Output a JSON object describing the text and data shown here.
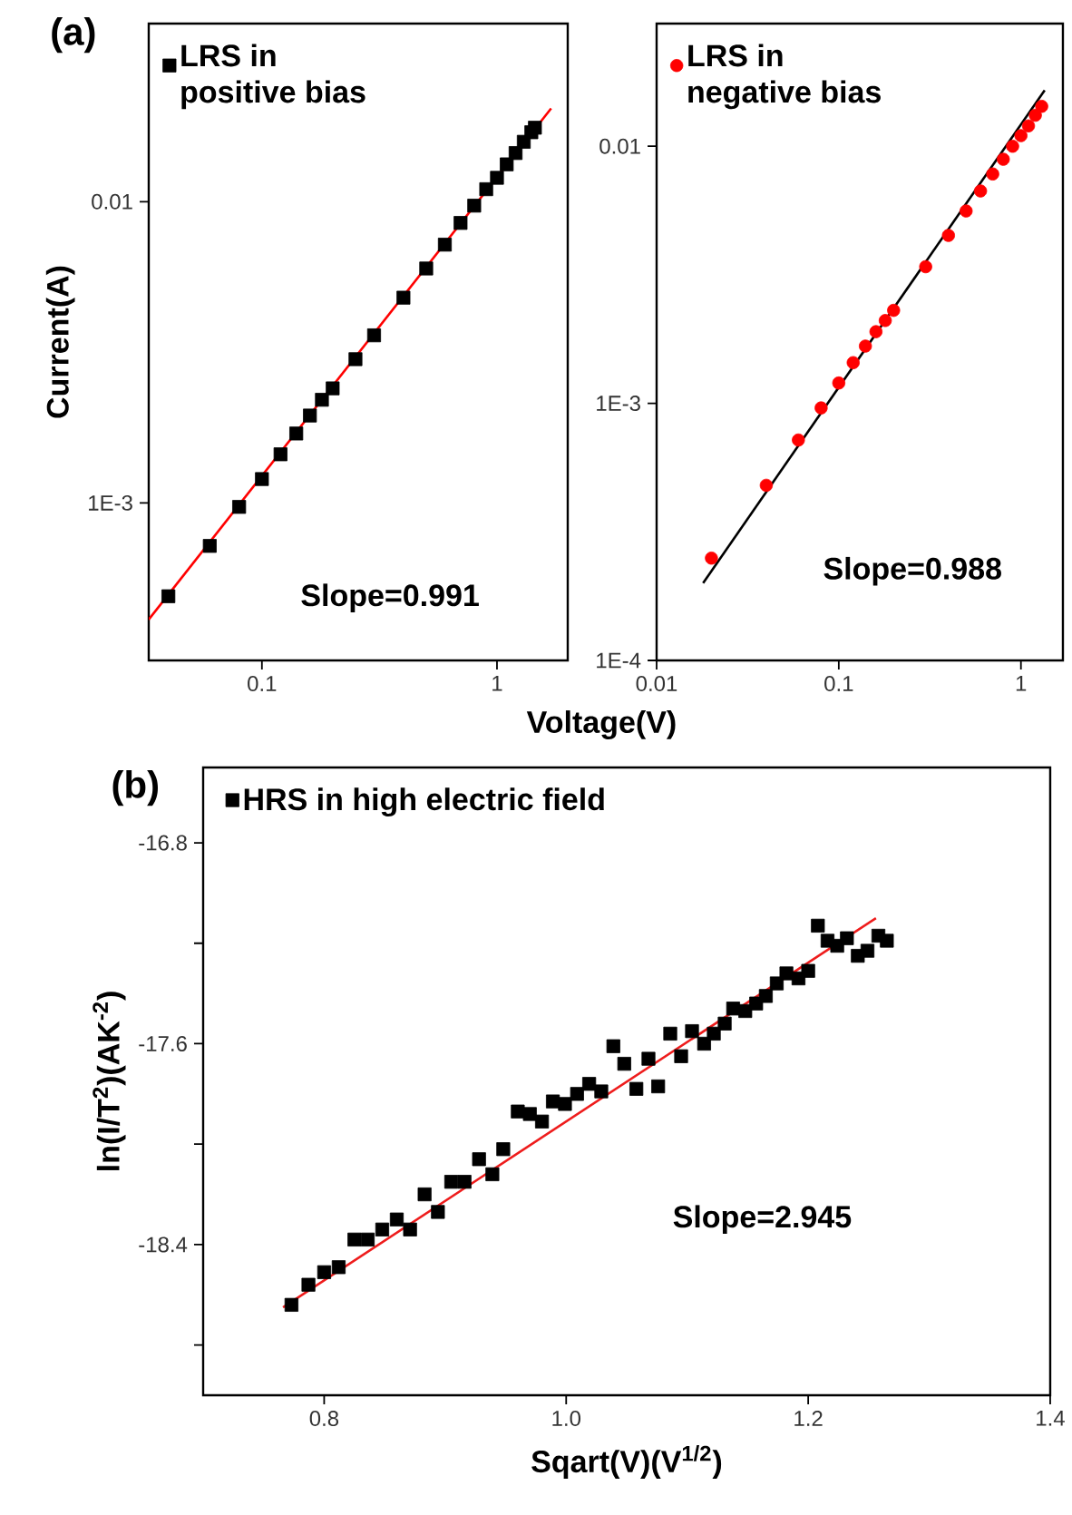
{
  "chart_data": [
    {
      "type": "scatter",
      "title": "(a)",
      "xlabel": "Voltage(V)",
      "ylabel": "Current(A)",
      "log": "xy",
      "legend": "top left",
      "xlim": [
        0.033,
        2.0
      ],
      "ylim": [
        0.0003,
        0.039
      ],
      "xticks": [
        0.1,
        1
      ],
      "yticks": [
        0.01,
        {
          "value": 0.001,
          "label": "1E-3"
        }
      ],
      "annotations": [
        "Slope=0.991"
      ],
      "series": [
        {
          "name": "LRS in positive bias",
          "marker": "square",
          "color": "#000000",
          "x": [
            0.04,
            0.06,
            0.08,
            0.1,
            0.12,
            0.14,
            0.16,
            0.18,
            0.2,
            0.25,
            0.3,
            0.4,
            0.5,
            0.6,
            0.7,
            0.8,
            0.9,
            1.0,
            1.1,
            1.2,
            1.3,
            1.4,
            1.45
          ],
          "values": [
            0.00049,
            0.00072,
            0.00097,
            0.0012,
            0.00145,
            0.0017,
            0.00195,
            0.0022,
            0.0024,
            0.003,
            0.0036,
            0.0048,
            0.006,
            0.0072,
            0.0085,
            0.0097,
            0.011,
            0.012,
            0.0133,
            0.0145,
            0.0158,
            0.017,
            0.0176
          ]
        },
        {
          "type": "line",
          "color": "#ff0000",
          "x": [
            0.033,
            1.7
          ],
          "values": [
            0.00041,
            0.0204
          ]
        }
      ]
    },
    {
      "type": "scatter",
      "log": "xy",
      "legend": "top left",
      "xlim": [
        0.01,
        1.7
      ],
      "ylim": [
        0.0001,
        0.03
      ],
      "xticks": [
        0.01,
        0.1,
        1
      ],
      "yticks": [
        0.01,
        {
          "value": 0.001,
          "label": "1E-3"
        },
        {
          "value": 0.0001,
          "label": "1E-4"
        }
      ],
      "annotations": [
        "Slope=0.988"
      ],
      "series": [
        {
          "name": "LRS in negative bias",
          "marker": "circle",
          "color": "#ff0000",
          "x": [
            0.02,
            0.04,
            0.06,
            0.08,
            0.1,
            0.12,
            0.14,
            0.16,
            0.18,
            0.2,
            0.3,
            0.4,
            0.5,
            0.6,
            0.7,
            0.8,
            0.9,
            1.0,
            1.1,
            1.2,
            1.3
          ],
          "values": [
            0.00025,
            0.00048,
            0.00072,
            0.00096,
            0.0012,
            0.00144,
            0.00167,
            0.0019,
            0.0021,
            0.0023,
            0.0034,
            0.0045,
            0.0056,
            0.0067,
            0.0078,
            0.0089,
            0.01,
            0.011,
            0.012,
            0.0132,
            0.0143
          ]
        },
        {
          "type": "line",
          "color": "#000000",
          "x": [
            0.018,
            1.35
          ],
          "values": [
            0.0002,
            0.0165
          ]
        }
      ]
    },
    {
      "type": "scatter",
      "title": "(b)",
      "xlabel": "Sqart(V)(V$^{1/2}$)",
      "ylabel": "ln(I/T$^{2}$)(AK$^{-2}$)",
      "legend": "top left",
      "xlim": [
        0.7,
        1.4
      ],
      "ylim": [
        -19.0,
        -16.5
      ],
      "xticks": [
        0.8,
        {
          "value": 1.0,
          "label": "1.0"
        },
        1.2,
        1.4
      ],
      "yticks": [
        -16.8,
        {
          "value": -17.2,
          "label": null
        },
        -17.6,
        {
          "value": -18.0,
          "label": null
        },
        -18.4,
        {
          "value": -18.8,
          "label": null
        }
      ],
      "annotations": [
        "Slope=2.945"
      ],
      "series": [
        {
          "name": "HRS in high electric field",
          "marker": "square",
          "color": "#000000",
          "x": [
            0.773,
            0.787,
            0.8,
            0.812,
            0.825,
            0.836,
            0.848,
            0.86,
            0.871,
            0.883,
            0.894,
            0.905,
            0.916,
            0.928,
            0.939,
            0.948,
            0.96,
            0.97,
            0.98,
            0.989,
            0.999,
            1.009,
            1.019,
            1.029,
            1.039,
            1.048,
            1.058,
            1.068,
            1.076,
            1.086,
            1.095,
            1.104,
            1.114,
            1.122,
            1.131,
            1.138,
            1.148,
            1.157,
            1.165,
            1.174,
            1.182,
            1.192,
            1.2,
            1.208,
            1.216,
            1.224,
            1.232,
            1.241,
            1.249,
            1.258,
            1.265
          ],
          "values": [
            -18.64,
            -18.56,
            -18.51,
            -18.49,
            -18.38,
            -18.38,
            -18.34,
            -18.3,
            -18.34,
            -18.2,
            -18.27,
            -18.15,
            -18.15,
            -18.06,
            -18.12,
            -18.02,
            -17.87,
            -17.88,
            -17.91,
            -17.83,
            -17.84,
            -17.8,
            -17.76,
            -17.79,
            -17.61,
            -17.68,
            -17.78,
            -17.66,
            -17.77,
            -17.56,
            -17.65,
            -17.55,
            -17.6,
            -17.56,
            -17.52,
            -17.46,
            -17.47,
            -17.44,
            -17.41,
            -17.36,
            -17.32,
            -17.34,
            -17.31,
            -17.13,
            -17.19,
            -17.21,
            -17.18,
            -17.25,
            -17.23,
            -17.17,
            -17.19
          ]
        },
        {
          "type": "line",
          "color": "#ee1c1c",
          "x": [
            0.766,
            1.256
          ],
          "values": [
            -18.65,
            -17.1
          ]
        }
      ]
    }
  ]
}
